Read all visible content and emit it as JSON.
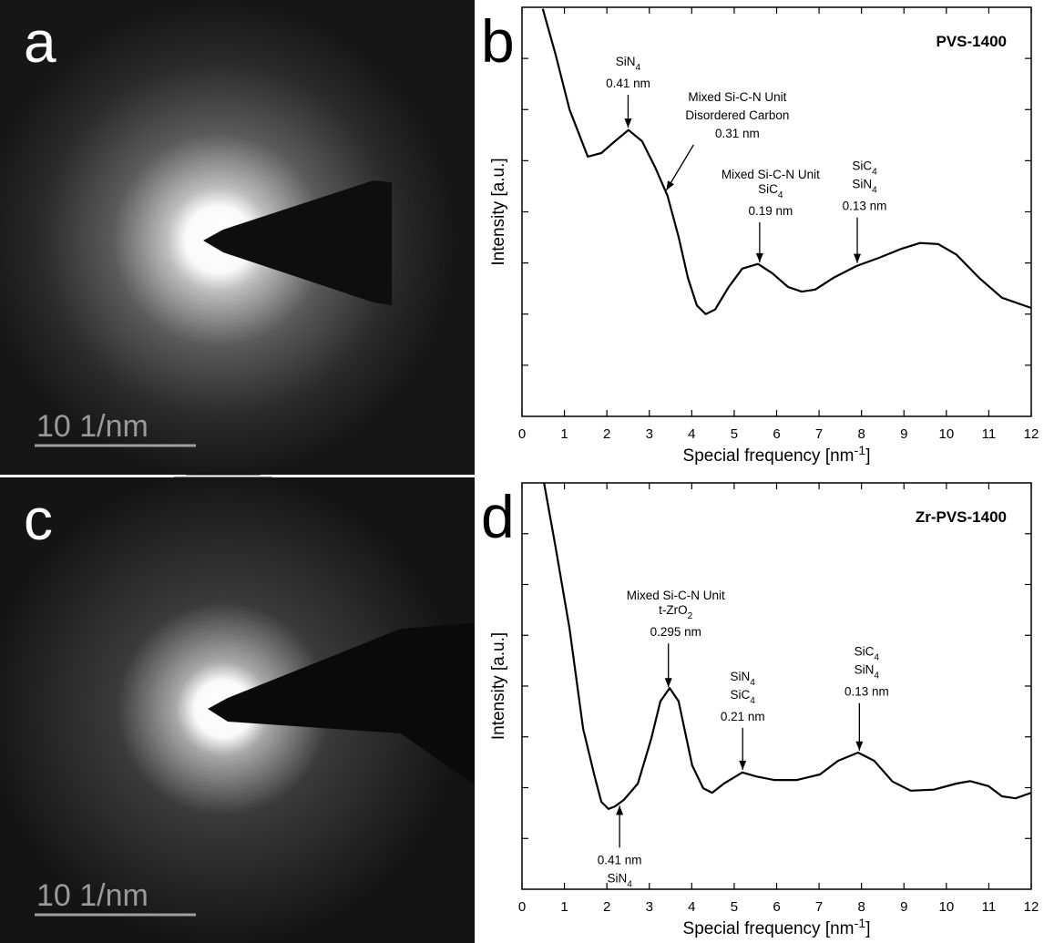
{
  "images": [
    {
      "label": "a",
      "scale_bar": "10 1/nm"
    },
    {
      "label": "c",
      "scale_bar": "10 1/nm"
    }
  ],
  "chart_data": [
    {
      "type": "line",
      "panel": "b",
      "title": "PVS-1400",
      "x_label": [
        "Special frequency [nm",
        "-1",
        "]"
      ],
      "y_label": "Intensity [a.u.]",
      "x": [
        0.49,
        0.79,
        1.12,
        1.55,
        1.87,
        2.19,
        2.51,
        2.83,
        3.15,
        3.43,
        3.69,
        3.91,
        4.12,
        4.33,
        4.55,
        4.87,
        5.19,
        5.56,
        5.9,
        6.27,
        6.59,
        6.91,
        7.34,
        7.88,
        8.41,
        8.95,
        9.38,
        9.81,
        10.24,
        10.77,
        11.31,
        12
      ],
      "values": [
        7.97,
        7.08,
        6.0,
        5.08,
        5.15,
        5.38,
        5.6,
        5.38,
        4.85,
        4.31,
        3.51,
        2.71,
        2.17,
        2.0,
        2.09,
        2.53,
        2.89,
        2.98,
        2.8,
        2.53,
        2.44,
        2.48,
        2.71,
        2.94,
        3.1,
        3.28,
        3.39,
        3.37,
        3.16,
        2.71,
        2.32,
        2.12
      ],
      "color": "#000000",
      "xlim": [
        0,
        12
      ],
      "xticks": [
        0,
        1,
        2,
        3,
        4,
        5,
        6,
        7,
        8,
        9,
        10,
        11,
        12
      ],
      "ylim": [
        0,
        8
      ],
      "yticks": [
        1,
        2,
        3,
        4,
        5,
        6,
        7
      ],
      "annotations": [
        {
          "x": 2.5,
          "lines": [
            [
              "SiN",
              "4"
            ],
            [
              "0.41 nm"
            ]
          ]
        },
        {
          "x": 3.4,
          "lines": [
            [
              "Mixed Si-C-N Unit"
            ],
            [
              "Disordered Carbon"
            ],
            [
              "0.31 nm"
            ]
          ]
        },
        {
          "x": 5.6,
          "lines": [
            [
              "Mixed Si-C-N Unit"
            ],
            [
              "SiC",
              "4"
            ],
            [
              "0.19 nm"
            ]
          ]
        },
        {
          "x": 7.9,
          "lines": [
            [
              "SiC",
              "4"
            ],
            [
              "SiN",
              "4"
            ],
            [
              "0.13 nm"
            ]
          ]
        }
      ]
    },
    {
      "type": "line",
      "panel": "d",
      "title": "Zr-PVS-1400",
      "x_label": [
        "Special frequency [nm",
        "-1",
        "]"
      ],
      "y_label": "Intensity [a.u.]",
      "x": [
        0.52,
        0.79,
        1.12,
        1.44,
        1.7,
        1.87,
        2.04,
        2.19,
        2.4,
        2.73,
        3.05,
        3.26,
        3.48,
        3.69,
        4.01,
        4.27,
        4.48,
        4.76,
        5.19,
        5.52,
        5.94,
        6.48,
        7.02,
        7.45,
        7.92,
        8.3,
        8.73,
        9.16,
        9.7,
        10.24,
        10.56,
        10.99,
        11.31,
        11.63,
        12
      ],
      "values": [
        8.0,
        6.74,
        5.13,
        3.16,
        2.26,
        1.72,
        1.58,
        1.63,
        1.76,
        2.08,
        2.98,
        3.7,
        3.96,
        3.7,
        2.44,
        1.99,
        1.9,
        2.08,
        2.3,
        2.22,
        2.15,
        2.15,
        2.26,
        2.53,
        2.69,
        2.53,
        2.12,
        1.94,
        1.96,
        2.08,
        2.13,
        2.03,
        1.83,
        1.79,
        1.9
      ],
      "color": "#000000",
      "xlim": [
        0,
        12
      ],
      "xticks": [
        0,
        1,
        2,
        3,
        4,
        5,
        6,
        7,
        8,
        9,
        10,
        11,
        12
      ],
      "ylim": [
        0,
        8
      ],
      "yticks": [
        1,
        2,
        3,
        4,
        5,
        6,
        7
      ],
      "annotations": [
        {
          "x": 2.3,
          "lines": [
            [
              "0.41 nm"
            ],
            [
              "SiN",
              "4"
            ]
          ]
        },
        {
          "x": 3.45,
          "lines": [
            [
              "Mixed Si-C-N Unit"
            ],
            [
              "t-ZrO",
              "2"
            ],
            [
              "0.295 nm"
            ]
          ]
        },
        {
          "x": 5.2,
          "lines": [
            [
              "SiN",
              "4"
            ],
            [
              "SiC",
              "4"
            ],
            [
              "0.21 nm"
            ]
          ]
        },
        {
          "x": 7.95,
          "lines": [
            [
              "SiC",
              "4"
            ],
            [
              "SiN",
              "4"
            ],
            [
              "0.13 nm"
            ]
          ]
        }
      ]
    }
  ]
}
